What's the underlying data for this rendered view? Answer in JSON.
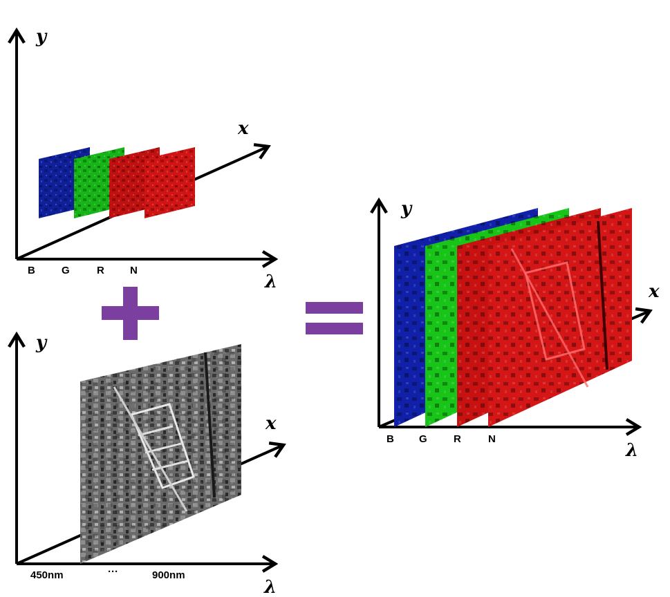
{
  "colors": {
    "blue_band": "#1020a0",
    "green_band": "#18c018",
    "red_band": "#c81010",
    "operator": "#7b3fa0",
    "axis": "#000000"
  },
  "ms_cube": {
    "axes": {
      "y": "y",
      "x": "x",
      "lambda": "λ"
    },
    "bands": [
      "B",
      "G",
      "R",
      "N"
    ]
  },
  "pan_image": {
    "axes": {
      "y": "y",
      "x": "x",
      "lambda": "λ"
    },
    "range_start": "450nm",
    "range_dots": "···",
    "range_end": "900nm"
  },
  "fused_cube": {
    "axes": {
      "y": "y",
      "x": "x",
      "lambda": "λ"
    },
    "bands": [
      "B",
      "G",
      "R",
      "N"
    ]
  },
  "operators": {
    "plus": "+",
    "equals": "="
  }
}
